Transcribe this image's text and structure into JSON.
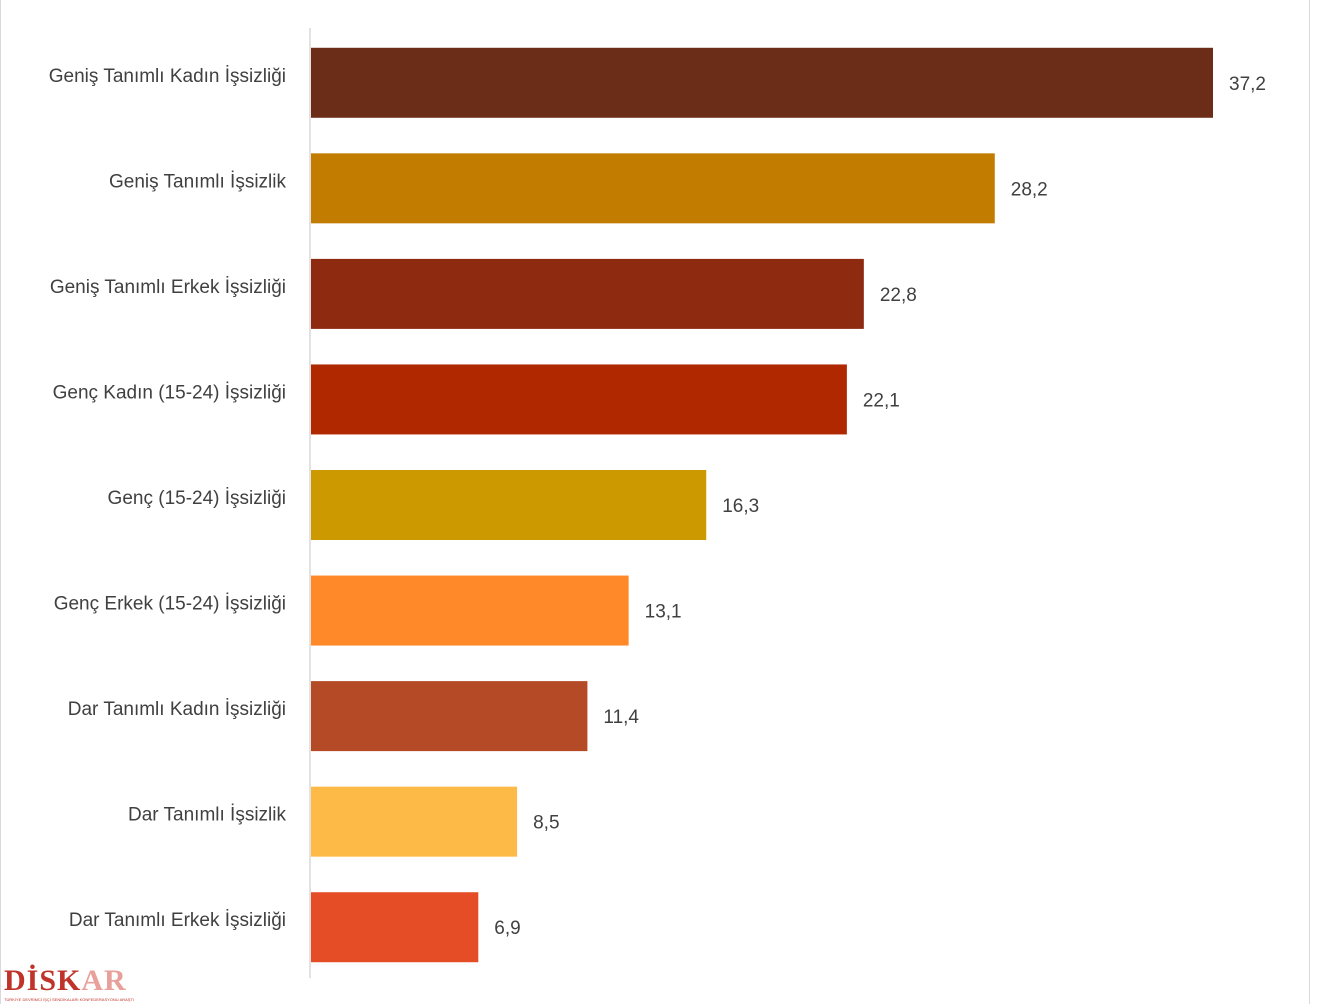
{
  "chart_data": {
    "type": "bar",
    "orientation": "horizontal",
    "title": "",
    "xlabel": "",
    "ylabel": "",
    "xlim": [
      0,
      41.2
    ],
    "grid": false,
    "legend": "none",
    "categories": [
      "Geniş Tanımlı Kadın İşsizliği",
      "Geniş Tanımlı İşsizlik",
      "Geniş Tanımlı Erkek İşsizliği",
      "Genç Kadın (15-24) İşsizliği",
      "Genç (15-24) İşsizliği",
      "Genç Erkek (15-24) İşsizliği",
      "Dar Tanımlı Kadın İşsizliği",
      "Dar Tanımlı İşsizlik",
      "Dar Tanımlı Erkek İşsizliği"
    ],
    "values": [
      37.2,
      28.2,
      22.8,
      22.1,
      16.3,
      13.1,
      11.4,
      8.5,
      6.9
    ],
    "value_labels": [
      "37,2",
      "28,2",
      "22,8",
      "22,1",
      "16,3",
      "13,1",
      "11,4",
      "8,5",
      "6,9"
    ],
    "colors": [
      "#6B2C18",
      "#C27C00",
      "#8E2A10",
      "#B02800",
      "#CC9900",
      "#FF8929",
      "#B54B26",
      "#FDBA47",
      "#E44D26"
    ]
  },
  "logo": {
    "text": "DİSKAR",
    "subtext": "TÜRKİYE DEVRİMCİ İŞÇİ SENDİKALARI KONFEDERASYONU ARAŞTIRMA MERKEZİ",
    "colors": [
      "#C0332A",
      "#E8A09A"
    ]
  }
}
